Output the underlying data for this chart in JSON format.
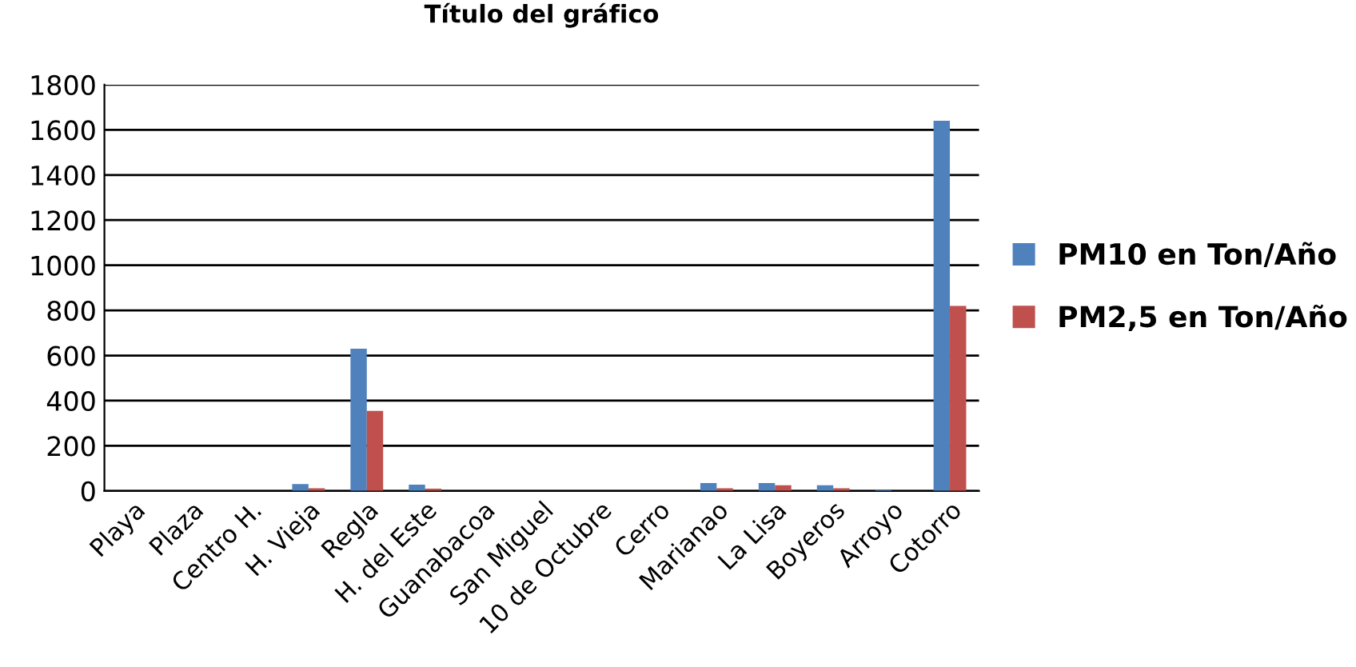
{
  "chart_data": {
    "type": "bar",
    "title": "Título del gráfico",
    "categories": [
      "Playa",
      "Plaza",
      "Centro H.",
      "H. Vieja",
      "Regla",
      "H. del Este",
      "Guanabacoa",
      "San Miguel",
      "10 de Octubre",
      "Cerro",
      "Marianao",
      "La Lisa",
      "Boyeros",
      "Arroyo",
      "Cotorro"
    ],
    "series": [
      {
        "name": "PM10 en Ton/Año",
        "color": "#4f81bd",
        "values": [
          0,
          0,
          0,
          30,
          630,
          28,
          0,
          0,
          0,
          0,
          35,
          35,
          25,
          5,
          1640
        ]
      },
      {
        "name": "PM2,5 en Ton/Año",
        "color": "#c0504d",
        "values": [
          0,
          0,
          0,
          12,
          355,
          10,
          0,
          0,
          0,
          0,
          12,
          25,
          12,
          null,
          820
        ]
      }
    ],
    "ylim": [
      0,
      1800
    ],
    "yticks": [
      0,
      200,
      400,
      600,
      800,
      1000,
      1200,
      1400,
      1600,
      1800
    ],
    "grid": "y",
    "legend": "right"
  }
}
